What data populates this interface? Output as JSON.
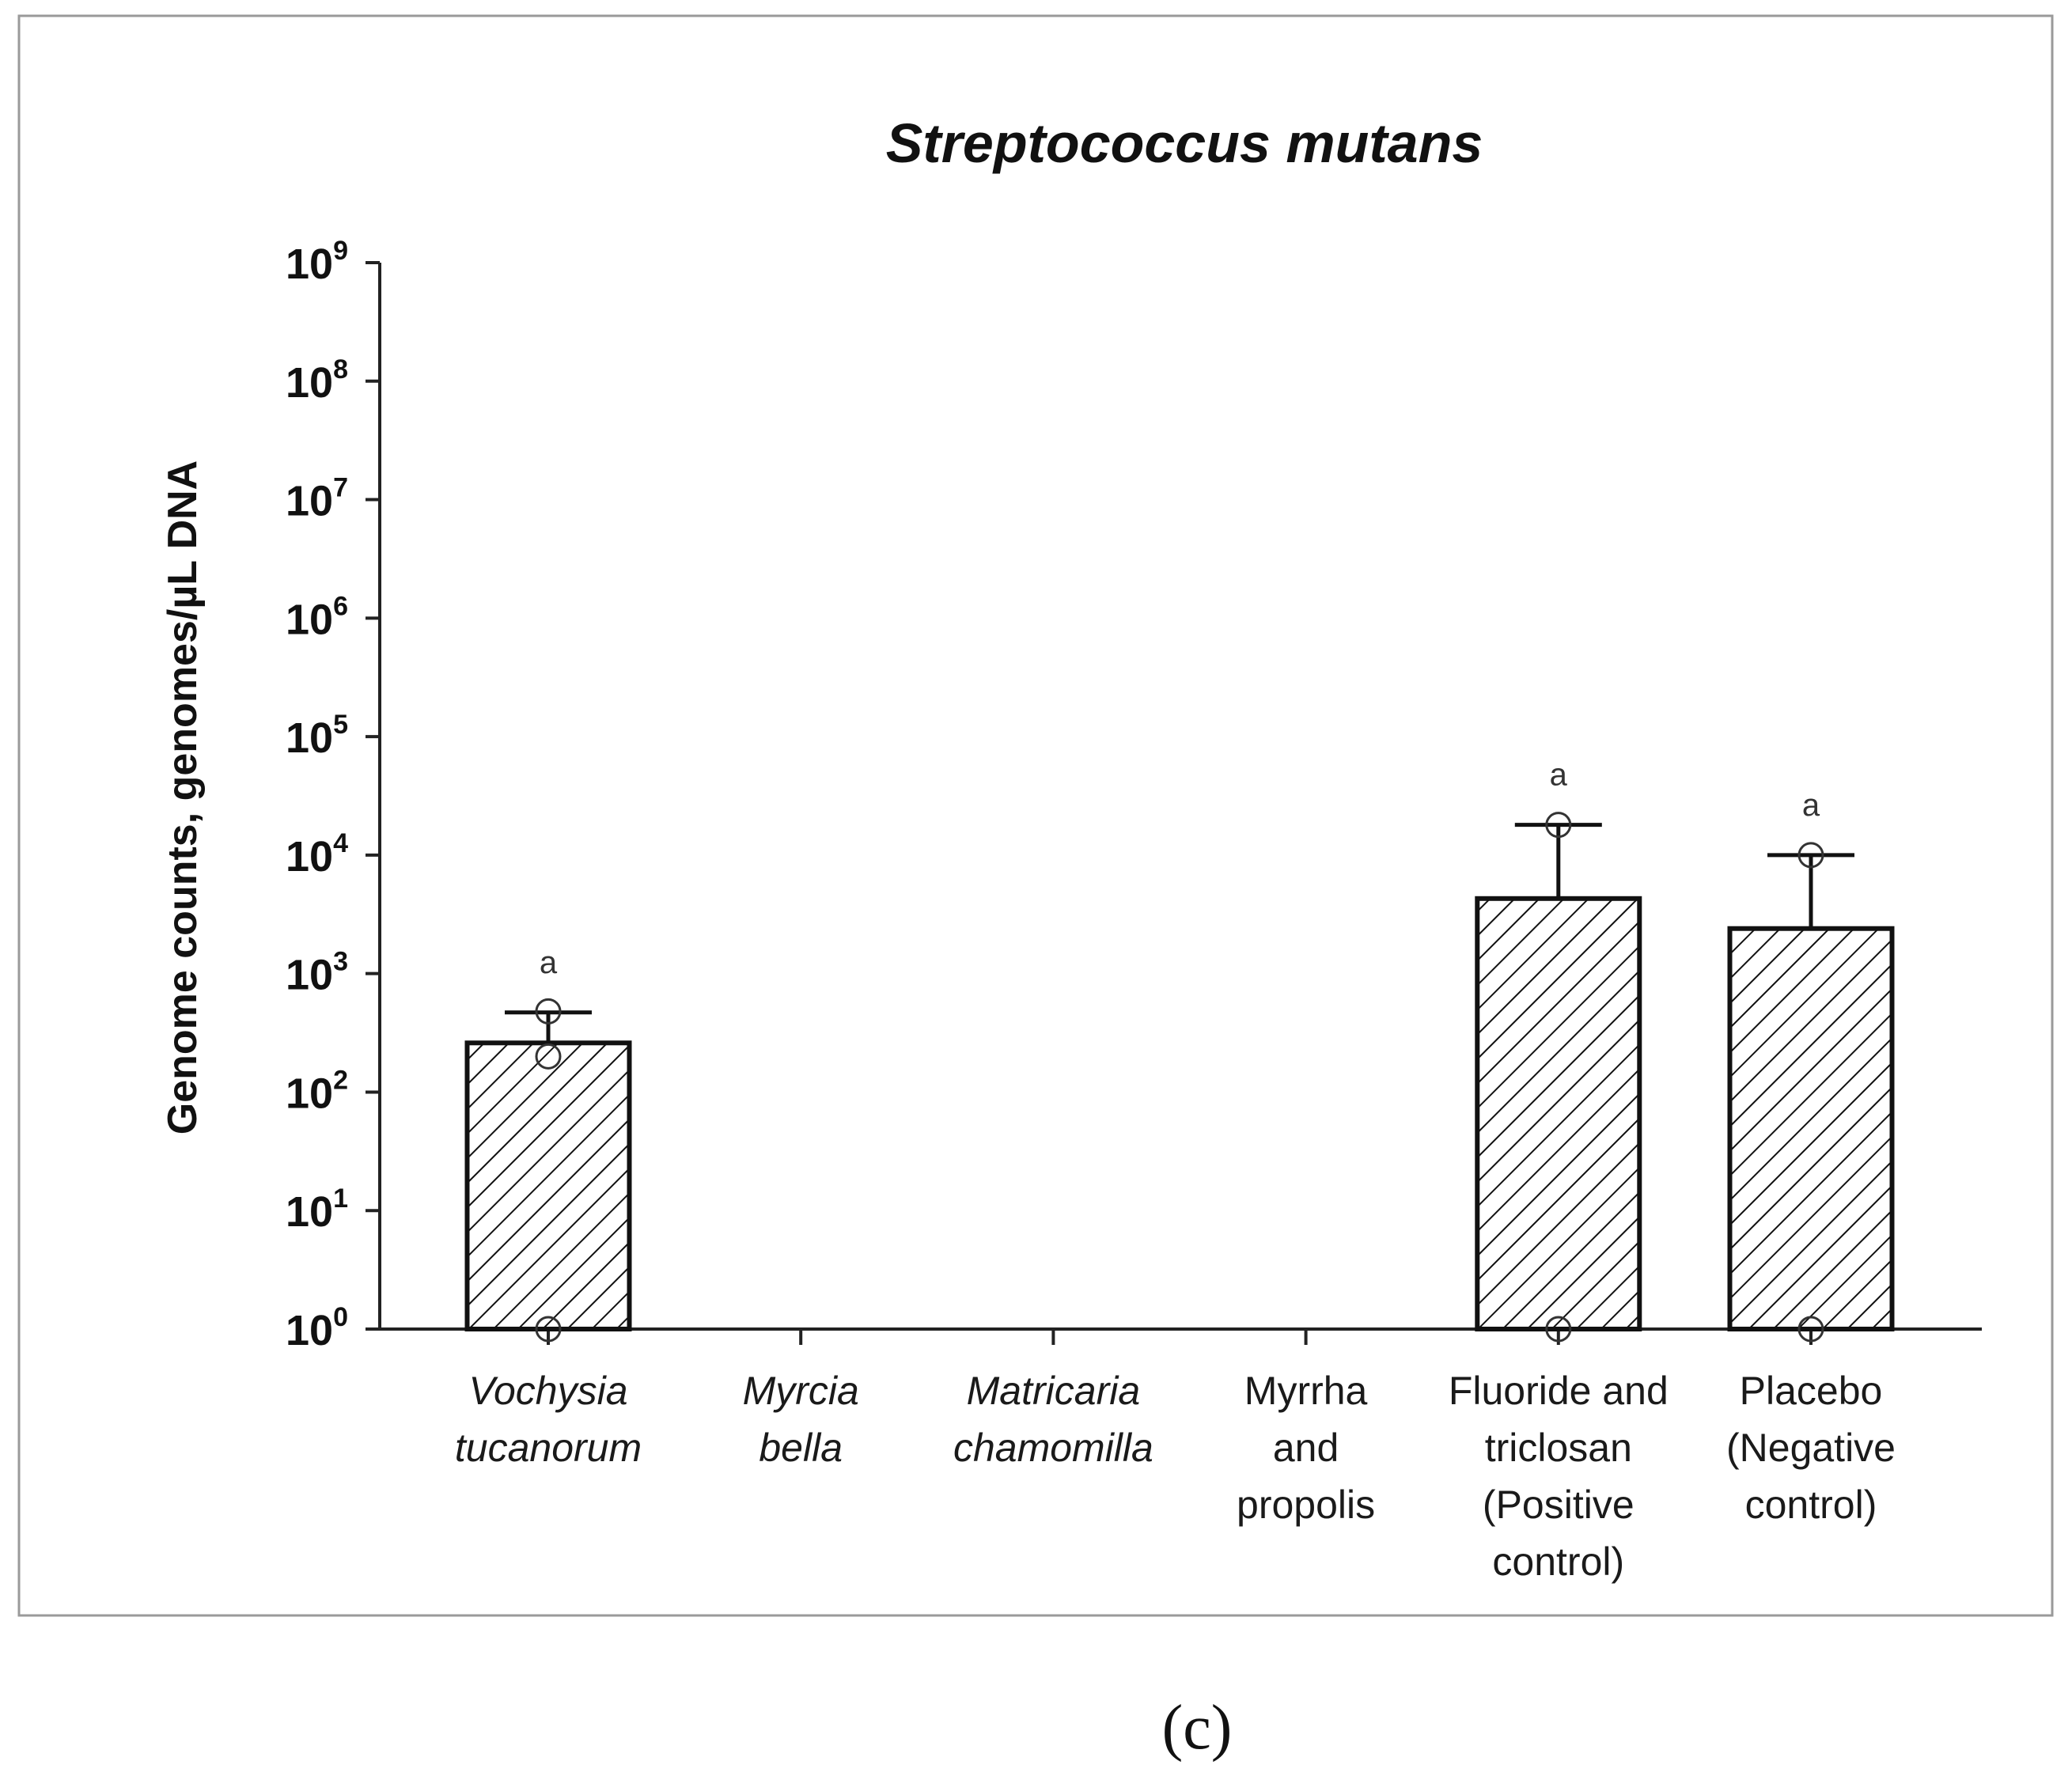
{
  "chart_data": {
    "type": "bar",
    "title": "Streptococcus mutans",
    "ylabel": "Genome counts, genomes/µL DNA",
    "xlabel": "",
    "yscale": "log",
    "ylim": [
      1,
      1000000000
    ],
    "yticks": [
      {
        "base": "10",
        "exp": "0"
      },
      {
        "base": "10",
        "exp": "1"
      },
      {
        "base": "10",
        "exp": "2"
      },
      {
        "base": "10",
        "exp": "3"
      },
      {
        "base": "10",
        "exp": "4"
      },
      {
        "base": "10",
        "exp": "5"
      },
      {
        "base": "10",
        "exp": "6"
      },
      {
        "base": "10",
        "exp": "7"
      },
      {
        "base": "10",
        "exp": "8"
      },
      {
        "base": "10",
        "exp": "9"
      }
    ],
    "categories": [
      {
        "lines": [
          "Vochysia",
          "tucanorum"
        ],
        "italic": true
      },
      {
        "lines": [
          "Myrcia",
          "bella"
        ],
        "italic": true
      },
      {
        "lines": [
          "Matricaria",
          "chamomilla"
        ],
        "italic": true
      },
      {
        "lines": [
          "Myrrha",
          "and",
          "propolis"
        ],
        "italic": false
      },
      {
        "lines": [
          "Fluoride and",
          "triclosan",
          "(Positive",
          "control)"
        ],
        "italic": false
      },
      {
        "lines": [
          "Placebo",
          "(Negative",
          "control)"
        ],
        "italic": false
      }
    ],
    "values": [
      260,
      null,
      null,
      null,
      4300,
      2400
    ],
    "error_upper": [
      470,
      null,
      null,
      null,
      18000,
      10000
    ],
    "points": [
      [
        1,
        200,
        480
      ],
      [],
      [],
      [],
      [
        1,
        18000
      ],
      [
        1,
        10000
      ]
    ],
    "annotations": [
      "a",
      "",
      "",
      "",
      "a",
      "a"
    ],
    "bar_fill": "hatched",
    "bar_color": "#111111"
  },
  "caption": "(c)"
}
